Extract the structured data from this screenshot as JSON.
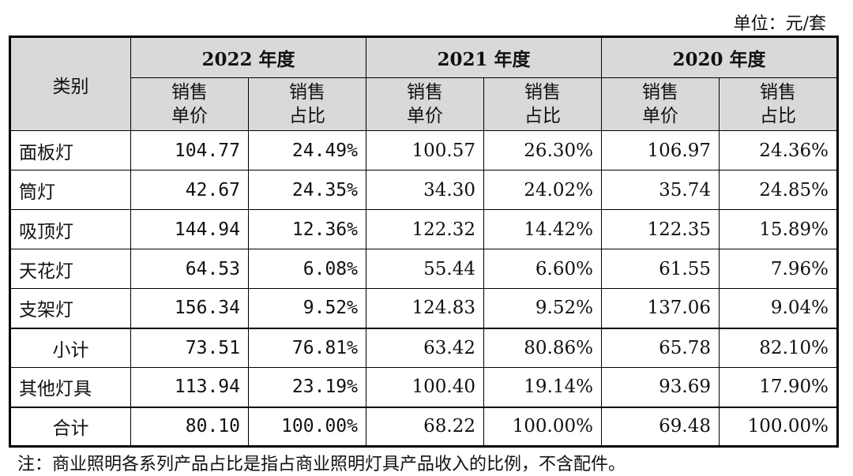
{
  "unit_label": "单位：元/套",
  "header": {
    "category": "类别",
    "years": [
      "2022 年度",
      "2021 年度",
      "2020 年度"
    ],
    "sub_price": "销售\n单价",
    "sub_ratio": "销售\n占比"
  },
  "rows": [
    {
      "name": "面板灯",
      "v": [
        "104.77",
        "24.49%",
        "100.57",
        "26.30%",
        "106.97",
        "24.36%"
      ]
    },
    {
      "name": "筒灯",
      "v": [
        "42.67",
        "24.35%",
        "34.30",
        "24.02%",
        "35.74",
        "24.85%"
      ]
    },
    {
      "name": "吸顶灯",
      "v": [
        "144.94",
        "12.36%",
        "122.32",
        "14.42%",
        "122.35",
        "15.89%"
      ]
    },
    {
      "name": "天花灯",
      "v": [
        "64.53",
        "6.08%",
        "55.44",
        "6.60%",
        "61.55",
        "7.96%"
      ]
    },
    {
      "name": "支架灯",
      "v": [
        "156.34",
        "9.52%",
        "124.83",
        "9.52%",
        "137.06",
        "9.04%"
      ]
    },
    {
      "name": "小计",
      "v": [
        "73.51",
        "76.81%",
        "63.42",
        "80.86%",
        "65.78",
        "82.10%"
      ]
    },
    {
      "name": "其他灯具",
      "v": [
        "113.94",
        "23.19%",
        "100.40",
        "19.14%",
        "93.69",
        "17.90%"
      ]
    },
    {
      "name": "合计",
      "v": [
        "80.10",
        "100.00%",
        "68.22",
        "100.00%",
        "69.48",
        "100.00%"
      ]
    }
  ],
  "note": "注：商业照明各系列产品占比是指占商业照明灯具产品收入的比例，不含配件。"
}
